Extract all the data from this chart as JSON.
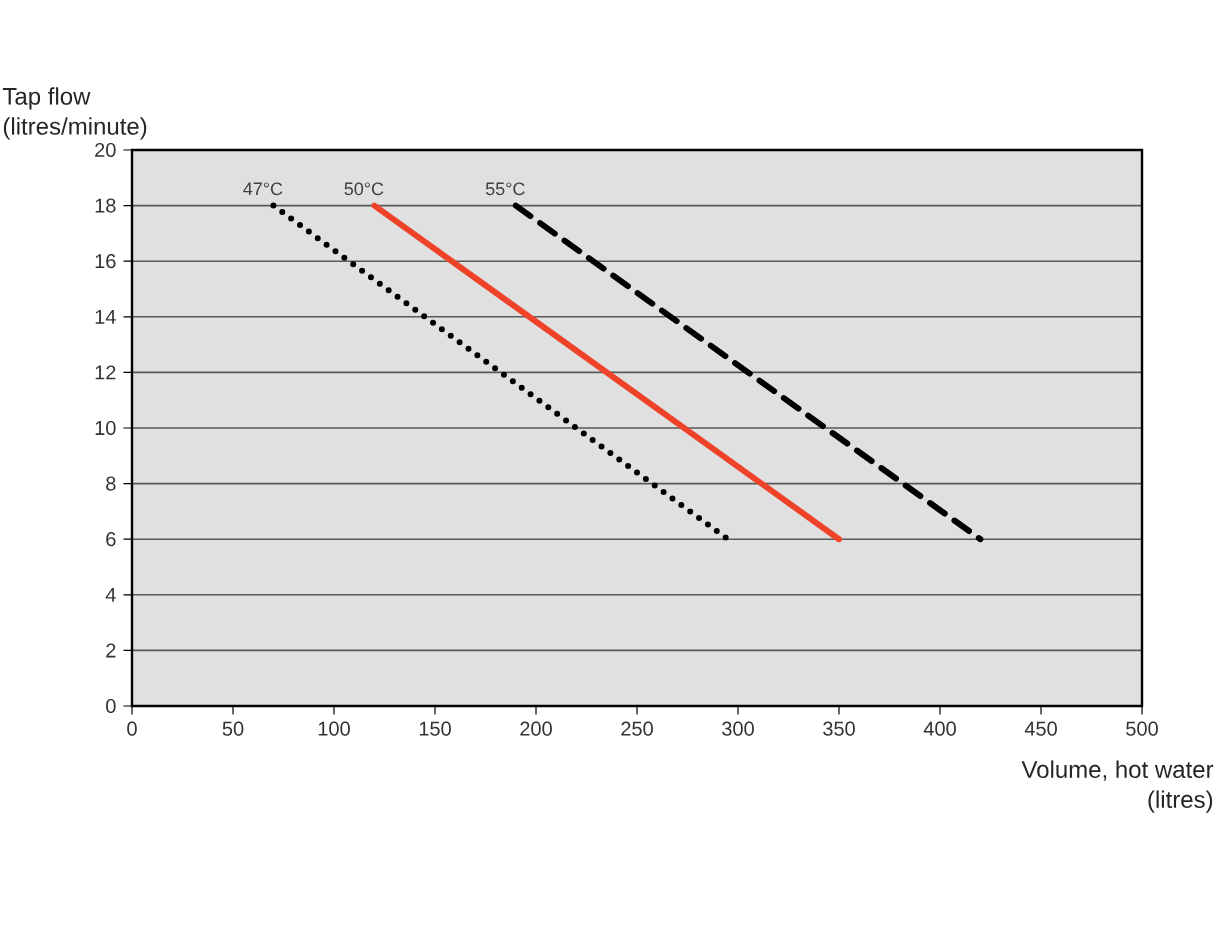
{
  "chart_data": {
    "type": "line",
    "xlabel": "Volume, hot water\n(litres)",
    "ylabel": "Tap flow\n(litres/minute)",
    "xlim": [
      0,
      500
    ],
    "xticks": [
      0,
      50,
      100,
      150,
      200,
      250,
      300,
      350,
      400,
      450,
      500
    ],
    "ylim": [
      0,
      20
    ],
    "yticks": [
      0,
      2,
      4,
      6,
      8,
      10,
      12,
      14,
      16,
      18,
      20
    ],
    "grid": "y",
    "series": [
      {
        "name": "47°C",
        "color": "#000000",
        "line_style": "dotted",
        "x": [
          70,
          295
        ],
        "values": [
          18,
          6
        ]
      },
      {
        "name": "50°C",
        "color": "#ee4328",
        "line_style": "solid",
        "x": [
          120,
          350
        ],
        "values": [
          18,
          6
        ]
      },
      {
        "name": "55°C",
        "color": "#000000",
        "line_style": "dashed",
        "x": [
          190,
          420
        ],
        "values": [
          18,
          6
        ]
      }
    ]
  }
}
